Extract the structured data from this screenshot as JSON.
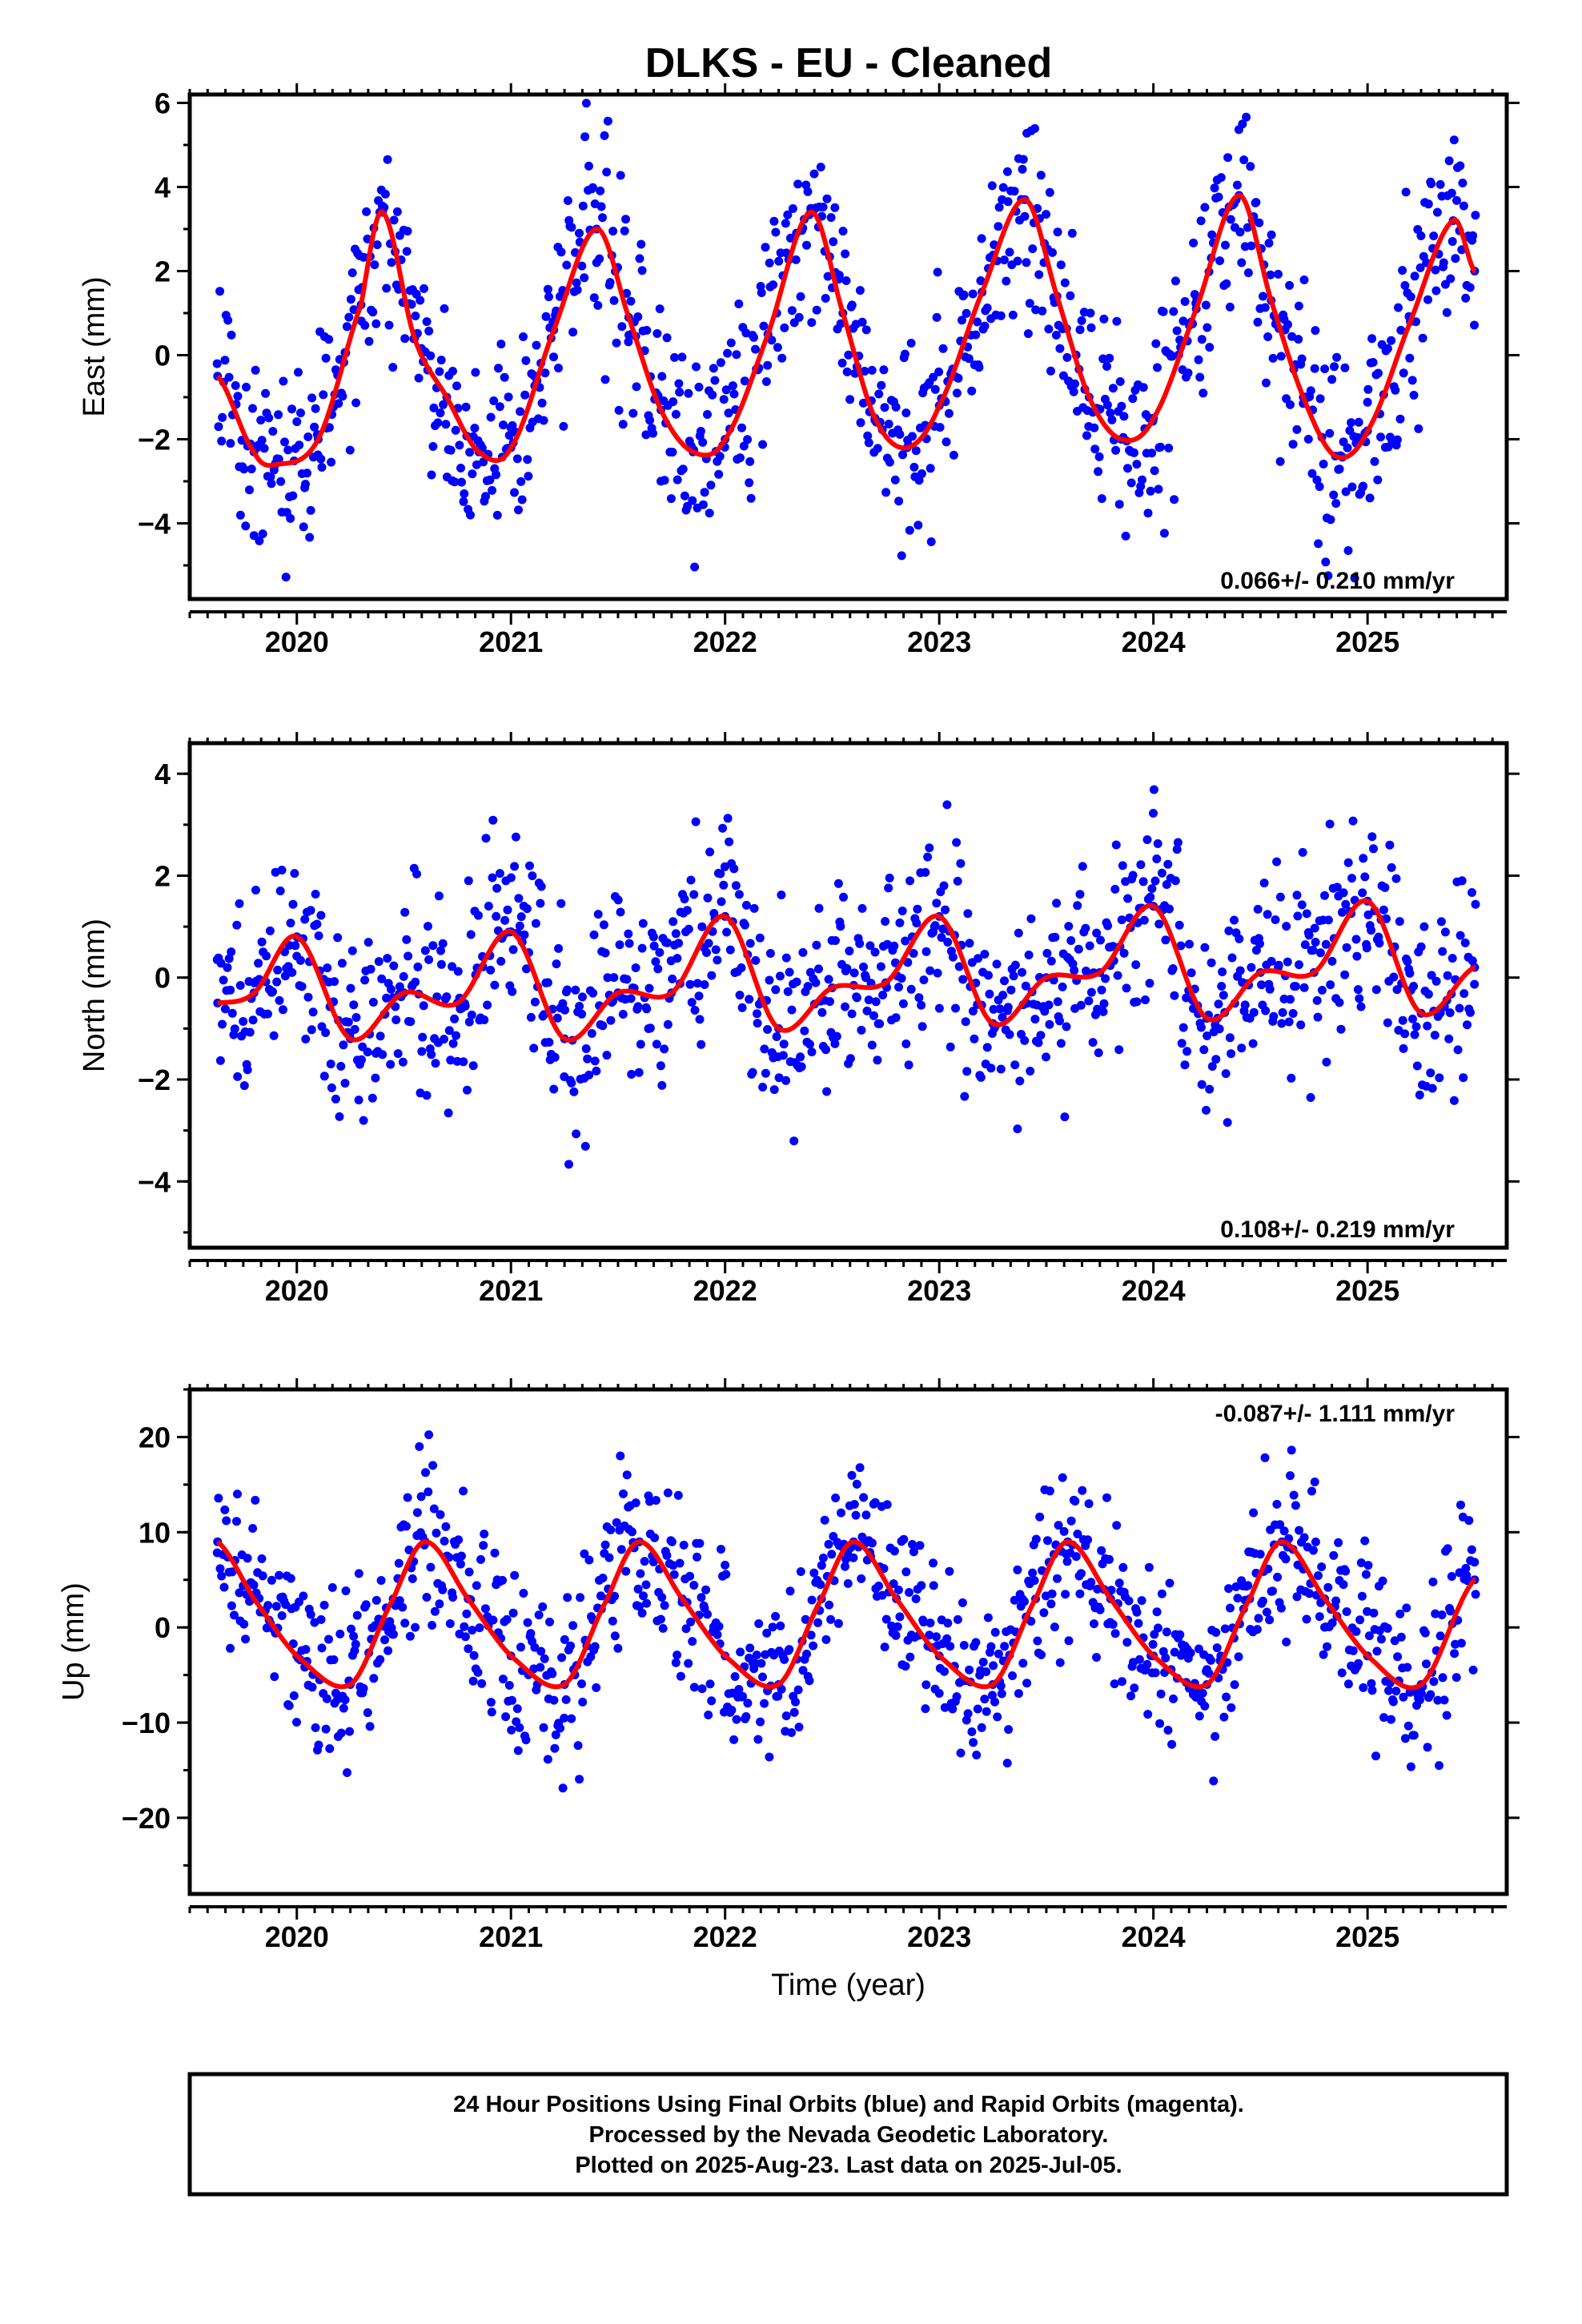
{
  "chart_data": [
    {
      "type": "scatter",
      "title": "DLKS  - EU - Cleaned",
      "ylabel": "East (mm)",
      "xlabel": "",
      "xlim": [
        2019.5,
        2025.65
      ],
      "ylim": [
        -5.8,
        6.2
      ],
      "xticks": [
        "2020",
        "2021",
        "2022",
        "2023",
        "2024",
        "2025"
      ],
      "yticks": [
        -4,
        -2,
        0,
        2,
        4,
        6
      ],
      "rate_text": "0.066+/- 0.210 mm/yr",
      "series": [
        {
          "color": "#0000ff",
          "x": [
            2019.63,
            2019.8,
            2019.9,
            2020.1,
            2020.3,
            2020.4,
            2020.55,
            2020.7,
            2020.85,
            2021.0,
            2021.2,
            2021.4,
            2021.55,
            2021.7,
            2021.85,
            2022.0,
            2022.2,
            2022.4,
            2022.55,
            2022.7,
            2022.85,
            2023.0,
            2023.2,
            2023.4,
            2023.55,
            2023.7,
            2023.85,
            2024.0,
            2024.2,
            2024.4,
            2024.55,
            2024.7,
            2024.85,
            2025.0,
            2025.2,
            2025.4,
            2025.5
          ],
          "y": [
            -0.5,
            -2.3,
            -2.6,
            -2.0,
            1.2,
            3.4,
            0.4,
            -1.0,
            -2.3,
            -2.2,
            0.6,
            3.0,
            0.9,
            -1.3,
            -2.3,
            -2.0,
            0.5,
            3.4,
            1.0,
            -1.5,
            -2.2,
            -1.2,
            1.5,
            3.7,
            1.4,
            -1.0,
            -2.0,
            -1.5,
            1.1,
            3.8,
            1.3,
            -1.0,
            -2.4,
            -1.8,
            0.8,
            3.2,
            2.0
          ]
        },
        {
          "color": "#ff0000",
          "x": [],
          "y": []
        }
      ]
    },
    {
      "type": "scatter",
      "title": "",
      "ylabel": "North (mm)",
      "xlabel": "",
      "xlim": [
        2019.5,
        2025.65
      ],
      "ylim": [
        -5.3,
        4.6
      ],
      "xticks": [
        "2020",
        "2021",
        "2022",
        "2023",
        "2024",
        "2025"
      ],
      "yticks": [
        -4,
        -2,
        0,
        2,
        4
      ],
      "rate_text": "0.108+/- 0.219 mm/yr",
      "series": [
        {
          "color": "#0000ff",
          "x": [
            2019.63,
            2019.8,
            2020.0,
            2020.25,
            2020.5,
            2020.75,
            2021.0,
            2021.25,
            2021.5,
            2021.75,
            2022.0,
            2022.25,
            2022.5,
            2022.75,
            2023.0,
            2023.25,
            2023.5,
            2023.75,
            2024.0,
            2024.25,
            2024.5,
            2024.75,
            2025.0,
            2025.25,
            2025.5
          ],
          "y": [
            -0.5,
            -0.3,
            0.8,
            -1.2,
            -0.3,
            -0.5,
            0.9,
            -1.2,
            -0.3,
            -0.3,
            1.2,
            -1.0,
            -0.2,
            -0.1,
            1.2,
            -0.9,
            0.0,
            0.1,
            1.4,
            -0.8,
            0.1,
            0.1,
            1.5,
            -0.7,
            0.2
          ]
        },
        {
          "color": "#ff0000",
          "x": [],
          "y": []
        }
      ]
    },
    {
      "type": "scatter",
      "title": "",
      "ylabel": "Up (mm)",
      "xlabel": "Time (year)",
      "xlim": [
        2019.5,
        2025.65
      ],
      "ylim": [
        -28,
        25
      ],
      "xticks": [
        "2020",
        "2021",
        "2022",
        "2023",
        "2024",
        "2025"
      ],
      "yticks": [
        -20,
        -10,
        0,
        10,
        20
      ],
      "rate_text": "-0.087+/- 1.111 mm/yr",
      "series": [
        {
          "color": "#0000ff",
          "x": [
            2019.63,
            2019.8,
            2020.0,
            2020.25,
            2020.45,
            2020.6,
            2020.8,
            2021.0,
            2021.25,
            2021.45,
            2021.6,
            2021.8,
            2022.0,
            2022.25,
            2022.45,
            2022.6,
            2022.8,
            2023.0,
            2023.25,
            2023.45,
            2023.6,
            2023.8,
            2024.0,
            2024.25,
            2024.45,
            2024.6,
            2024.8,
            2025.0,
            2025.25,
            2025.5
          ],
          "y": [
            9,
            3,
            -3,
            -6,
            3,
            9,
            3,
            -3,
            -6,
            3,
            9,
            3,
            -3,
            -6,
            3,
            9,
            3,
            -3,
            -6,
            3,
            9,
            3,
            -3,
            -6,
            3,
            9,
            3,
            -3,
            -6,
            5
          ]
        },
        {
          "color": "#ff0000",
          "x": [],
          "y": []
        }
      ]
    }
  ],
  "footer": {
    "line1": "24 Hour Positions Using Final Orbits (blue) and Rapid Orbits (magenta).",
    "line2": "Processed by the Nevada Geodetic Laboratory.",
    "line3": "Plotted on 2025-Aug-23. Last data on 2025-Jul-05."
  }
}
